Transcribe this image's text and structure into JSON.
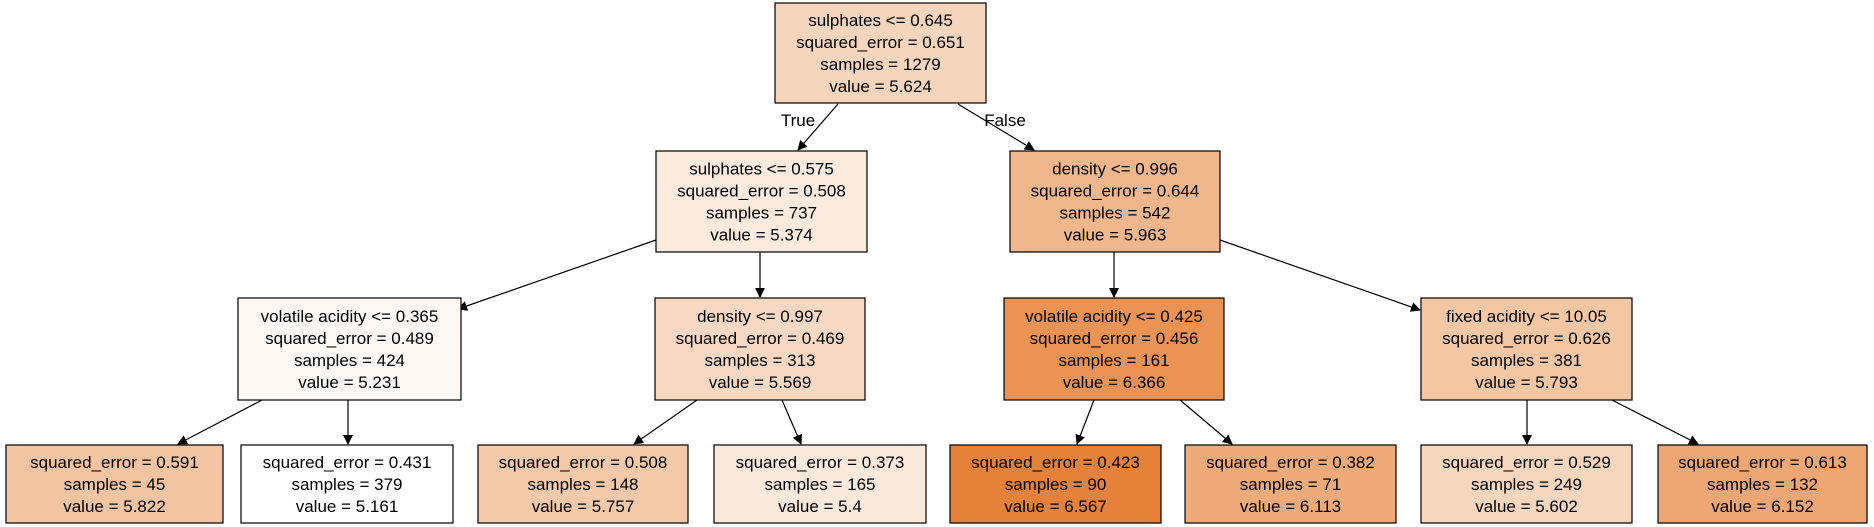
{
  "tree": {
    "nodes": [
      {
        "id": "n0",
        "lines": [
          "sulphates <= 0.645",
          "squared_error = 0.651",
          "samples = 1279",
          "value = 5.624"
        ],
        "fill": "#f6d5bd"
      },
      {
        "id": "n1",
        "lines": [
          "sulphates <= 0.575",
          "squared_error = 0.508",
          "samples = 737",
          "value = 5.374"
        ],
        "fill": "#fbebdf"
      },
      {
        "id": "n2",
        "lines": [
          "density <= 0.996",
          "squared_error = 0.644",
          "samples = 542",
          "value = 5.963"
        ],
        "fill": "#f1b78c"
      },
      {
        "id": "n3",
        "lines": [
          "volatile acidity <= 0.365",
          "squared_error = 0.489",
          "samples = 424",
          "value = 5.231"
        ],
        "fill": "#fef8f4"
      },
      {
        "id": "n4",
        "lines": [
          "density <= 0.997",
          "squared_error = 0.469",
          "samples = 313",
          "value = 5.569"
        ],
        "fill": "#f7d9c3"
      },
      {
        "id": "n5",
        "lines": [
          "volatile acidity <= 0.425",
          "squared_error = 0.456",
          "samples = 161",
          "value = 6.366"
        ],
        "fill": "#ea9354"
      },
      {
        "id": "n6",
        "lines": [
          "fixed acidity <= 10.05",
          "squared_error = 0.626",
          "samples = 381",
          "value = 5.793"
        ],
        "fill": "#f4c7a4"
      },
      {
        "id": "n7",
        "lines": [
          "squared_error = 0.591",
          "samples = 45",
          "value = 5.822"
        ],
        "fill": "#f3c4a1"
      },
      {
        "id": "n8",
        "lines": [
          "squared_error = 0.431",
          "samples = 379",
          "value = 5.161"
        ],
        "fill": "#ffffff"
      },
      {
        "id": "n9",
        "lines": [
          "squared_error = 0.508",
          "samples = 148",
          "value = 5.757"
        ],
        "fill": "#f4c9aa"
      },
      {
        "id": "n10",
        "lines": [
          "squared_error = 0.373",
          "samples = 165",
          "value = 5.4"
        ],
        "fill": "#fbe9dc"
      },
      {
        "id": "n11",
        "lines": [
          "squared_error = 0.423",
          "samples = 90",
          "value = 6.567"
        ],
        "fill": "#e58139"
      },
      {
        "id": "n12",
        "lines": [
          "squared_error = 0.382",
          "samples = 71",
          "value = 6.113"
        ],
        "fill": "#eeaa79"
      },
      {
        "id": "n13",
        "lines": [
          "squared_error = 0.529",
          "samples = 249",
          "value = 5.602"
        ],
        "fill": "#f7d6be"
      },
      {
        "id": "n14",
        "lines": [
          "squared_error = 0.613",
          "samples = 132",
          "value = 6.152"
        ],
        "fill": "#eda674"
      }
    ],
    "edges": [
      {
        "from": "n0",
        "to": "n1",
        "label": "True"
      },
      {
        "from": "n0",
        "to": "n2",
        "label": "False"
      },
      {
        "from": "n1",
        "to": "n3",
        "label": ""
      },
      {
        "from": "n1",
        "to": "n4",
        "label": ""
      },
      {
        "from": "n2",
        "to": "n5",
        "label": ""
      },
      {
        "from": "n2",
        "to": "n6",
        "label": ""
      },
      {
        "from": "n3",
        "to": "n7",
        "label": ""
      },
      {
        "from": "n3",
        "to": "n8",
        "label": ""
      },
      {
        "from": "n4",
        "to": "n9",
        "label": ""
      },
      {
        "from": "n4",
        "to": "n10",
        "label": ""
      },
      {
        "from": "n5",
        "to": "n11",
        "label": ""
      },
      {
        "from": "n5",
        "to": "n12",
        "label": ""
      },
      {
        "from": "n6",
        "to": "n13",
        "label": ""
      },
      {
        "from": "n6",
        "to": "n14",
        "label": ""
      }
    ]
  }
}
